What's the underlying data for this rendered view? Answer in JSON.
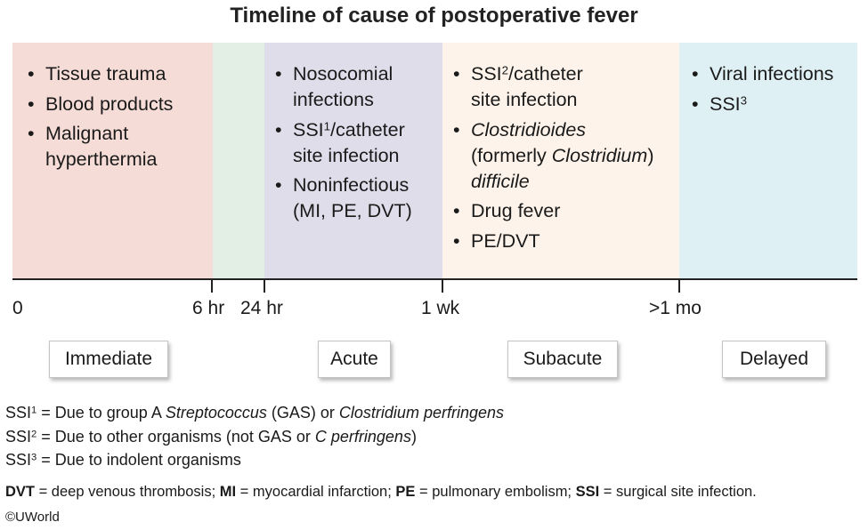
{
  "title": "Timeline of cause of postoperative fever",
  "colors": {
    "immediate_bg": "#f6dcd6",
    "immediate_transition_bg": "#e3efe4",
    "acute_bg": "#dfdde9",
    "subacute_bg": "#fdf3ea",
    "delayed_bg": "#dff0f4"
  },
  "panels": {
    "immediate": {
      "items": [
        "Tissue trauma",
        "Blood products",
        "Malignant hyperthermia"
      ]
    },
    "acute": {
      "items": [
        "Nosocomial infections",
        "/catheter site infection",
        "Noninfectious (MI, PE, DVT)"
      ],
      "ssi_label": "SSI",
      "ssi_sup": "1"
    },
    "subacute": {
      "ssi_label": "SSI",
      "ssi_sup": "2",
      "ssi_rest": "/catheter site infection",
      "cdiff": {
        "part1": "Clostridioides",
        "part2": "(formerly ",
        "part3": "Clostridium",
        "part4": ")",
        "part5": "difficile"
      },
      "items": [
        "Drug fever",
        "PE/DVT"
      ]
    },
    "delayed": {
      "items": [
        "Viral infections"
      ],
      "ssi_label": "SSI",
      "ssi_sup": "3"
    }
  },
  "timeline": {
    "ticks": [
      "0",
      "6 hr",
      "24 hr",
      "1 wk",
      ">1 mo"
    ]
  },
  "phases": [
    "Immediate",
    "Acute",
    "Subacute",
    "Delayed"
  ],
  "footnotes": {
    "fn1": {
      "label": "SSI",
      "sup": "1",
      "a": " = Due to group A ",
      "b": "Streptococcus",
      "c": " (GAS) or ",
      "d": "Clostridium perfringens"
    },
    "fn2": {
      "label": "SSI",
      "sup": "2",
      "a": " = Due to other organisms (not GAS or ",
      "b": "C perfringens",
      "c": ")"
    },
    "fn3": {
      "label": "SSI",
      "sup": "3",
      "a": " = Due to indolent organisms"
    }
  },
  "abbreviations": [
    {
      "abbr": "DVT",
      "def": " = deep venous thrombosis; "
    },
    {
      "abbr": "MI",
      "def": " = myocardial infarction; "
    },
    {
      "abbr": "PE",
      "def": " = pulmonary embolism; "
    },
    {
      "abbr": "SSI",
      "def": " = surgical site infection."
    }
  ],
  "copyright": "©UWorld"
}
